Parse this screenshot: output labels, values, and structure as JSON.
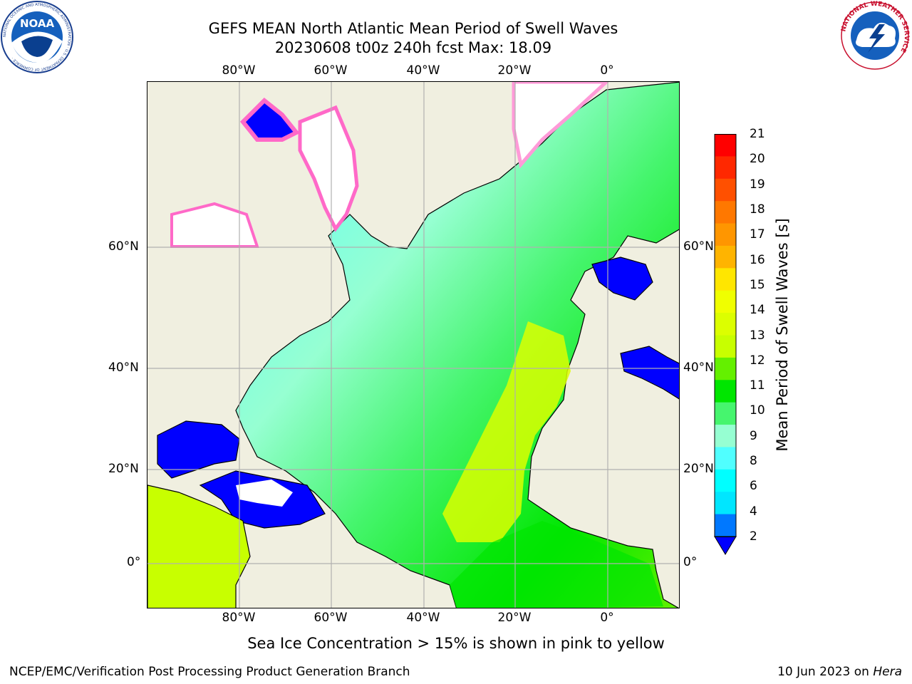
{
  "title_line1": "GEFS MEAN North Atlantic Mean Period of Swell Waves",
  "title_line2": "20230608 t00z 240h fcst   Max: 18.09",
  "subtitle": "Sea Ice Concentration > 15% is shown in pink to yellow",
  "footer_left": "NCEP/EMC/Verification Post Processing Product Generation Branch",
  "footer_right_date": "10 Jun 2023 on",
  "footer_right_host": "Hera",
  "logos": {
    "noaa": "NOAA",
    "noaa_ring": "NATIONAL OCEANIC AND ATMOSPHERIC ADMINISTRATION · U.S. DEPARTMENT OF COMMERCE ·",
    "nws_ring": "NATIONAL WEATHER SERVICE"
  },
  "map": {
    "lon_ticks": [
      "80°W",
      "60°W",
      "40°W",
      "20°W",
      "0°"
    ],
    "lat_ticks": [
      "60°N",
      "40°N",
      "20°N",
      "0°"
    ],
    "lon_values": [
      -80,
      -60,
      -40,
      -20,
      0
    ],
    "lat_values": [
      60,
      40,
      20,
      0
    ],
    "colors": {
      "land": "#f0efe0",
      "grid": "#b0b0b0",
      "coast": "#000000",
      "ice": "#ffffff"
    }
  },
  "colorbar": {
    "label": "Mean Period of Swell Waves [s]",
    "ticks": [
      "21",
      "20",
      "19",
      "18",
      "17",
      "16",
      "15",
      "14",
      "13",
      "12",
      "11",
      "10",
      "9",
      "8",
      "6",
      "4",
      "2"
    ],
    "colors": [
      "#ff0000",
      "#ff2800",
      "#ff5000",
      "#ff7800",
      "#ff9600",
      "#ffb400",
      "#ffe600",
      "#f0ff00",
      "#dcff00",
      "#c8ff00",
      "#64f000",
      "#00e600",
      "#46f56e",
      "#96ffd2",
      "#50ffff",
      "#00ffff",
      "#00e6ff",
      "#0078ff"
    ],
    "underflow_color": "#0000ff"
  }
}
